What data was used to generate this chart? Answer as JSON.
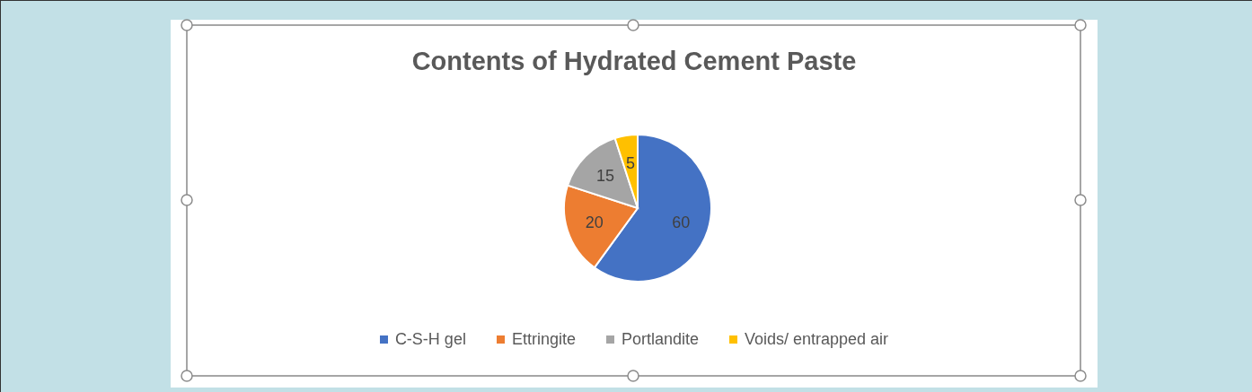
{
  "chart_data": {
    "type": "pie",
    "title": "Contents of Hydrated Cement Paste",
    "categories": [
      "C-S-H gel",
      "Ettringite",
      "Portlandite",
      "Voids/ entrapped air"
    ],
    "values": [
      60,
      20,
      15,
      5
    ],
    "colors": [
      "#4472c4",
      "#ed7d31",
      "#a5a5a5",
      "#ffc000"
    ],
    "data_labels": true,
    "legend": "bottom"
  }
}
